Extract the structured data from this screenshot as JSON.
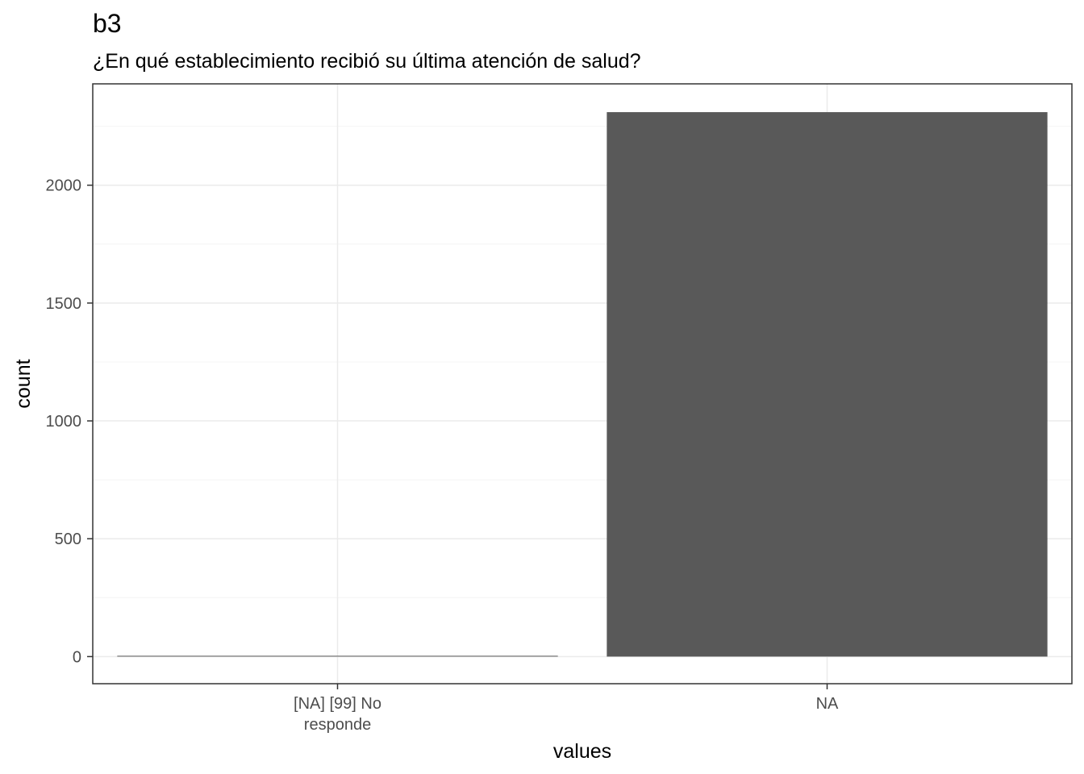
{
  "chart_data": {
    "type": "bar",
    "title": "b3",
    "subtitle": "¿En qué establecimiento recibió su última atención de salud?",
    "xlabel": "values",
    "ylabel": "count",
    "categories": [
      [
        "[NA] [99] No",
        "responde"
      ],
      [
        "NA"
      ]
    ],
    "values": [
      2,
      2310
    ],
    "ylim": [
      -115,
      2430
    ],
    "yticks": [
      0,
      500,
      1000,
      1500,
      2000
    ],
    "ytick_labels": [
      "0",
      "500",
      "1000",
      "1500",
      "2000"
    ],
    "grid": true,
    "legend": "none",
    "colors": {
      "bar": "#595959",
      "panel_border": "#333333",
      "grid_major": "#ebebeb",
      "grid_minor": "#f4f4f4",
      "tick_text": "#4d4d4d"
    }
  }
}
